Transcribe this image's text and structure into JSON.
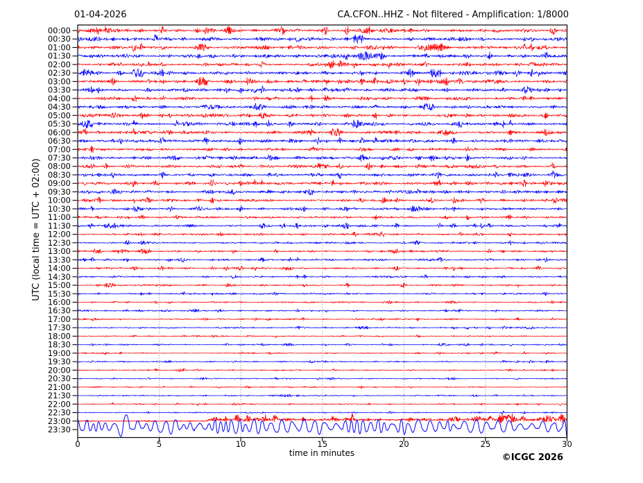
{
  "header": {
    "date": "01-04-2026",
    "title": "CA.CFON..HHZ - Not filtered - Amplification: 1/8000"
  },
  "footer": {
    "copyright": "©ICGC 2026"
  },
  "chart_data": {
    "type": "line",
    "subtype": "helicorder-seismogram",
    "station": "CA.CFON..HHZ",
    "filter": "Not filtered",
    "amplification": "1/8000",
    "date": "01-04-2026",
    "xlabel": "time in minutes",
    "ylabel": "UTC (local time = UTC + 02:00)",
    "xlim": [
      0,
      30
    ],
    "x_ticks": [
      0,
      5,
      10,
      15,
      20,
      25,
      30
    ],
    "row_interval_minutes": 30,
    "n_rows": 48,
    "grid": {
      "vertical_minutes": [
        5,
        10,
        15,
        20,
        25
      ],
      "style": "dotted",
      "horizontal": false
    },
    "legend": "none",
    "colors": {
      "hour_rows": "#ff0000",
      "half_hour_rows": "#0000ff",
      "frame": "#000000",
      "grid": "#555555",
      "text": "#000000",
      "background": "#ffffff"
    },
    "rows": [
      {
        "time": "00:00",
        "color": "#ff0000",
        "amplitude": 2.6
      },
      {
        "time": "00:30",
        "color": "#0000ff",
        "amplitude": 2.6
      },
      {
        "time": "01:00",
        "color": "#ff0000",
        "amplitude": 2.5
      },
      {
        "time": "01:30",
        "color": "#0000ff",
        "amplitude": 2.6
      },
      {
        "time": "02:00",
        "color": "#ff0000",
        "amplitude": 2.4
      },
      {
        "time": "02:30",
        "color": "#0000ff",
        "amplitude": 2.6
      },
      {
        "time": "03:00",
        "color": "#ff0000",
        "amplitude": 2.5
      },
      {
        "time": "03:30",
        "color": "#0000ff",
        "amplitude": 2.5
      },
      {
        "time": "04:00",
        "color": "#ff0000",
        "amplitude": 2.2
      },
      {
        "time": "04:30",
        "color": "#0000ff",
        "amplitude": 2.3
      },
      {
        "time": "05:00",
        "color": "#ff0000",
        "amplitude": 2.3
      },
      {
        "time": "05:30",
        "color": "#0000ff",
        "amplitude": 2.4
      },
      {
        "time": "06:00",
        "color": "#ff0000",
        "amplitude": 2.4
      },
      {
        "time": "06:30",
        "color": "#0000ff",
        "amplitude": 2.3
      },
      {
        "time": "07:00",
        "color": "#ff0000",
        "amplitude": 2.2
      },
      {
        "time": "07:30",
        "color": "#0000ff",
        "amplitude": 2.3
      },
      {
        "time": "08:00",
        "color": "#ff0000",
        "amplitude": 2.2
      },
      {
        "time": "08:30",
        "color": "#0000ff",
        "amplitude": 2.3
      },
      {
        "time": "09:00",
        "color": "#ff0000",
        "amplitude": 2.4
      },
      {
        "time": "09:30",
        "color": "#0000ff",
        "amplitude": 2.2
      },
      {
        "time": "10:00",
        "color": "#ff0000",
        "amplitude": 1.9
      },
      {
        "time": "10:30",
        "color": "#0000ff",
        "amplitude": 1.8
      },
      {
        "time": "11:00",
        "color": "#ff0000",
        "amplitude": 1.7
      },
      {
        "time": "11:30",
        "color": "#0000ff",
        "amplitude": 1.8
      },
      {
        "time": "12:00",
        "color": "#ff0000",
        "amplitude": 1.6
      },
      {
        "time": "12:30",
        "color": "#0000ff",
        "amplitude": 1.5
      },
      {
        "time": "13:00",
        "color": "#ff0000",
        "amplitude": 1.5
      },
      {
        "time": "13:30",
        "color": "#0000ff",
        "amplitude": 1.4
      },
      {
        "time": "14:00",
        "color": "#ff0000",
        "amplitude": 1.4
      },
      {
        "time": "14:30",
        "color": "#0000ff",
        "amplitude": 1.3
      },
      {
        "time": "15:00",
        "color": "#ff0000",
        "amplitude": 1.3
      },
      {
        "time": "15:30",
        "color": "#0000ff",
        "amplitude": 1.2
      },
      {
        "time": "16:00",
        "color": "#ff0000",
        "amplitude": 1.1
      },
      {
        "time": "16:30",
        "color": "#0000ff",
        "amplitude": 1.1
      },
      {
        "time": "17:00",
        "color": "#ff0000",
        "amplitude": 1.0
      },
      {
        "time": "17:30",
        "color": "#0000ff",
        "amplitude": 1.0
      },
      {
        "time": "18:00",
        "color": "#ff0000",
        "amplitude": 1.0
      },
      {
        "time": "18:30",
        "color": "#0000ff",
        "amplitude": 0.9
      },
      {
        "time": "19:00",
        "color": "#ff0000",
        "amplitude": 0.9
      },
      {
        "time": "19:30",
        "color": "#0000ff",
        "amplitude": 0.9
      },
      {
        "time": "20:00",
        "color": "#ff0000",
        "amplitude": 0.85
      },
      {
        "time": "20:30",
        "color": "#0000ff",
        "amplitude": 0.85
      },
      {
        "time": "21:00",
        "color": "#ff0000",
        "amplitude": 0.85
      },
      {
        "time": "21:30",
        "color": "#0000ff",
        "amplitude": 0.8
      },
      {
        "time": "22:00",
        "color": "#ff0000",
        "amplitude": 0.8
      },
      {
        "time": "22:30",
        "color": "#0000ff",
        "amplitude": 0.9
      },
      {
        "time": "23:00",
        "color": "#ff0000",
        "amplitude": 0.8,
        "event": {
          "start_minute": 7.8,
          "amplitude": 3.0
        }
      },
      {
        "time": "23:30",
        "color": "#0000ff",
        "amplitude": 8.0,
        "type": "storm"
      }
    ]
  }
}
